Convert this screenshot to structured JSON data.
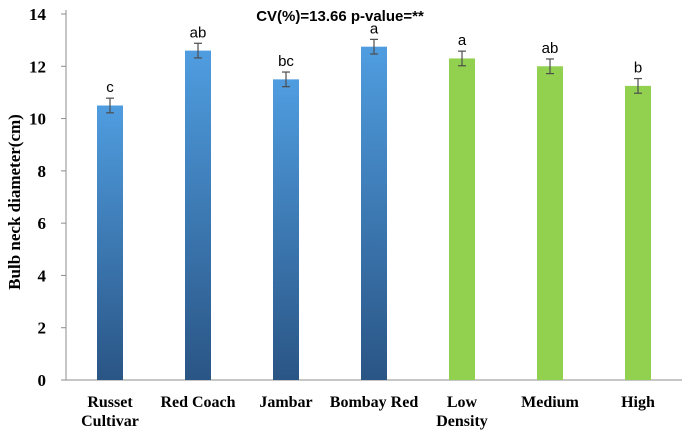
{
  "chart_data": {
    "type": "bar",
    "title": "",
    "annotation": "CV(%)=13.66  p-value=**",
    "ylabel": "Bulb neck  diameter(cm)",
    "xlabel": "",
    "ylim": [
      0,
      14
    ],
    "yticks": [
      "0",
      "2",
      "4",
      "6",
      "8",
      "10",
      "12",
      "14"
    ],
    "categories": [
      [
        "Russet",
        "Cultivar"
      ],
      [
        "Red Coach"
      ],
      [
        "Jambar"
      ],
      [
        "Bombay Red"
      ],
      [
        "Low",
        "Density"
      ],
      [
        "Medium"
      ],
      [
        "High"
      ]
    ],
    "values": [
      10.5,
      12.6,
      11.5,
      12.75,
      12.3,
      12.0,
      11.25
    ],
    "errors": [
      0.28,
      0.28,
      0.28,
      0.28,
      0.28,
      0.28,
      0.28
    ],
    "significance": [
      "c",
      "ab",
      "bc",
      "a",
      "a",
      "ab",
      "b"
    ],
    "groups": [
      "cultivar",
      "cultivar",
      "cultivar",
      "cultivar",
      "density",
      "density",
      "density"
    ],
    "colors": {
      "cultivar_top": "#4f9de0",
      "cultivar_bottom": "#2a5585",
      "density": "#92d050",
      "axis": "#8c8c8c",
      "error_bar": "#4d4d4d"
    }
  }
}
